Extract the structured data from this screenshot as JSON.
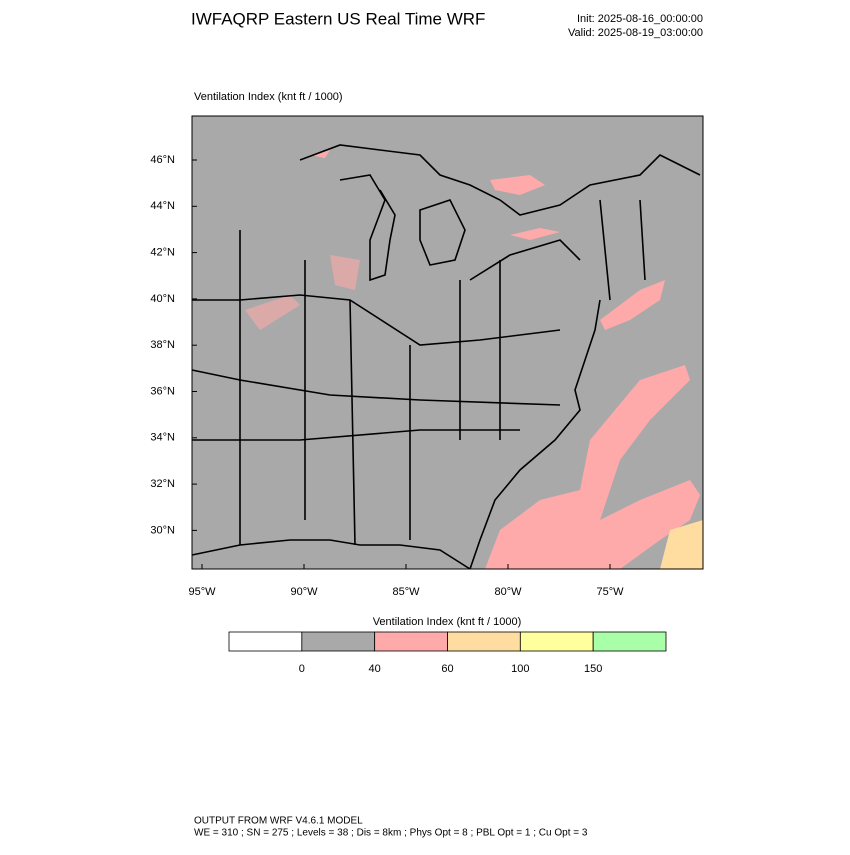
{
  "header": {
    "title": "IWFAQRP Eastern US Real Time WRF",
    "init": "Init: 2025-08-16_00:00:00",
    "valid": "Valid: 2025-08-19_03:00:00"
  },
  "map": {
    "subtitle": "Ventilation Index   (knt ft / 1000)",
    "lat_labels": [
      "46°N",
      "44°N",
      "42°N",
      "40°N",
      "38°N",
      "36°N",
      "34°N",
      "32°N",
      "30°N"
    ],
    "lon_labels": [
      "95°W",
      "90°W",
      "85°W",
      "80°W",
      "75°W"
    ]
  },
  "colorbar": {
    "title": "Ventilation Index  (knt ft / 1000)",
    "colors": [
      "#ffffff",
      "#a9a9a9",
      "#ffaaaa",
      "#ffdca0",
      "#ffff9e",
      "#a8ffa8"
    ],
    "ticks": [
      0,
      40,
      60,
      100,
      150
    ]
  },
  "footer": {
    "line1": "OUTPUT FROM WRF V4.6.1 MODEL",
    "line2": "WE = 310 ; SN = 275 ; Levels = 38 ; Dis = 8km ; Phys Opt = 8 ; PBL Opt = 1 ; Cu Opt = 3"
  }
}
